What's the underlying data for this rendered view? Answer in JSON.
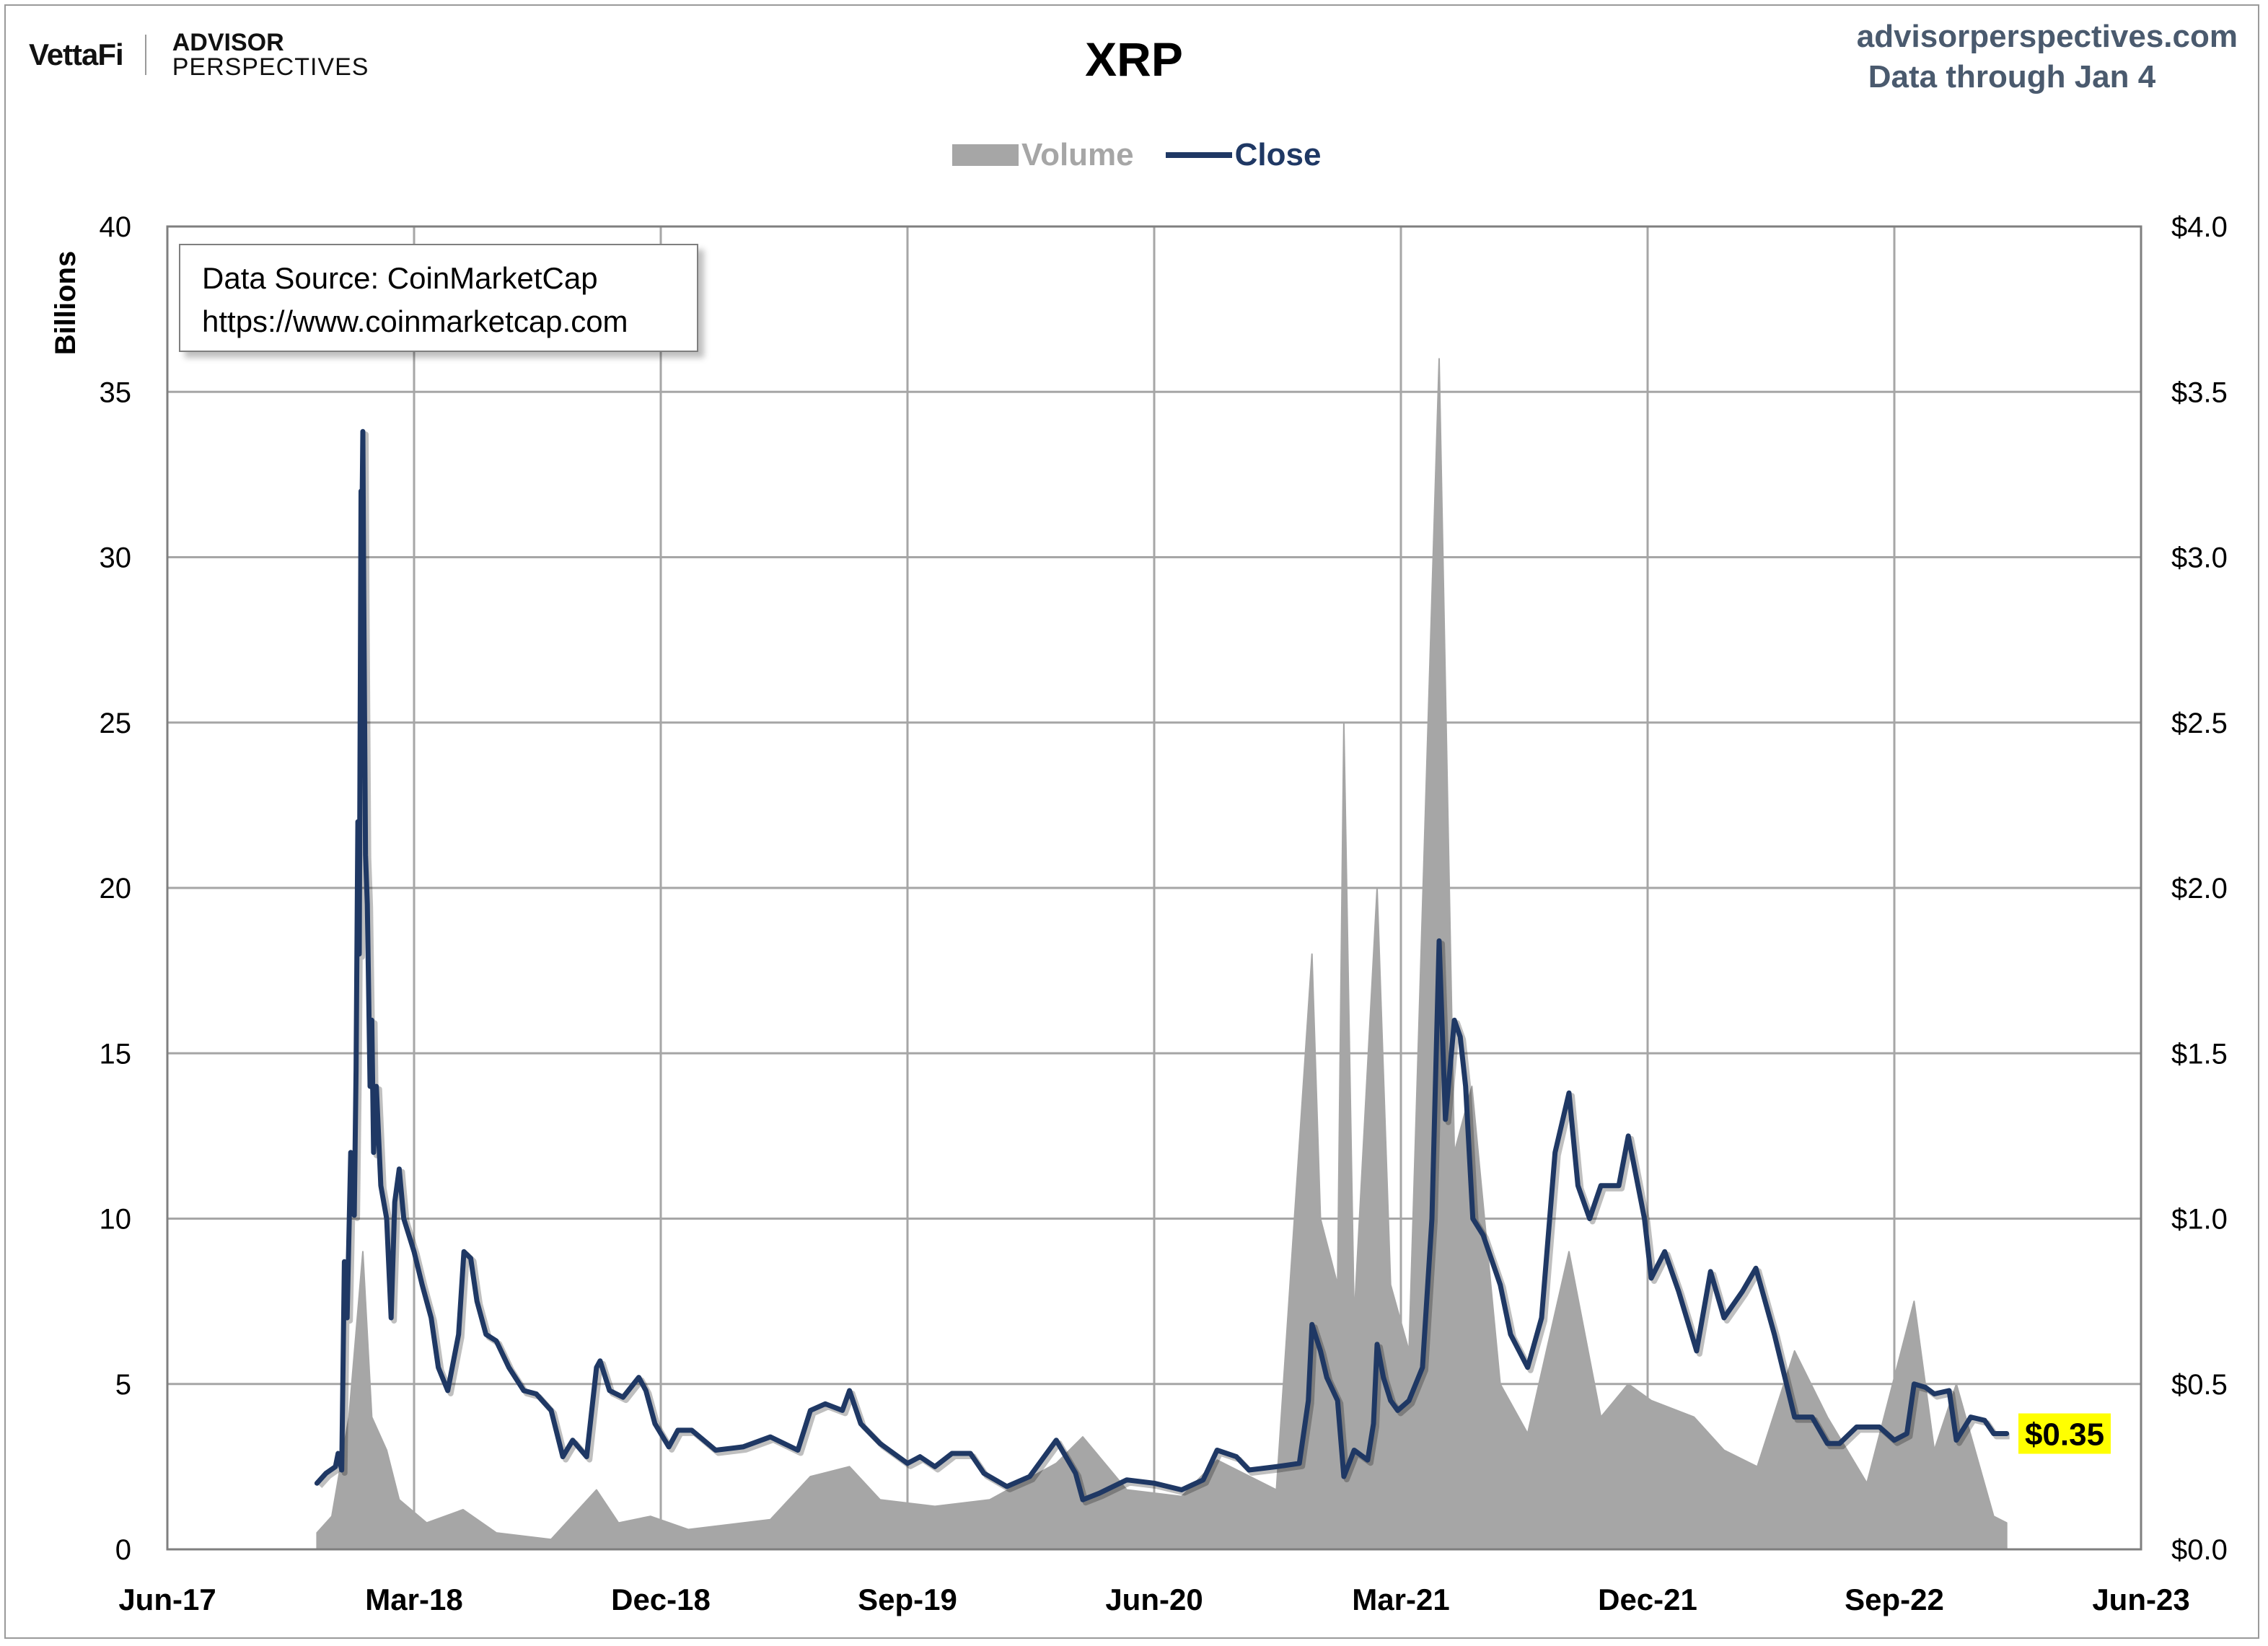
{
  "brand": {
    "logo_text": "VettaFi",
    "partner_line1": "ADVISOR",
    "partner_line2": "PERSPECTIVES"
  },
  "header": {
    "site": "advisorperspectives.com",
    "data_through": "Data through Jan 4"
  },
  "source_box": {
    "line1": "Data Source: CoinMarketCap",
    "line2": "https://www.coinmarketcap.com"
  },
  "colors": {
    "volume": "#a6a6a6",
    "close": "#1f3864",
    "grid": "#a6a6a6",
    "badge": "#ffff00"
  },
  "chart_data": {
    "type": "area+line",
    "title": "XRP",
    "y_left_label": "Billions",
    "y_left_range": [
      0,
      40
    ],
    "y_left_ticks": [
      "0",
      "5",
      "10",
      "15",
      "20",
      "25",
      "30",
      "35",
      "40"
    ],
    "y_right_range": [
      0,
      4
    ],
    "y_right_ticks": [
      "$0.0",
      "$0.5",
      "$1.0",
      "$1.5",
      "$2.0",
      "$2.5",
      "$3.0",
      "$3.5",
      "$4.0"
    ],
    "x_range": [
      "2017-06",
      "2023-06"
    ],
    "x_ticks": [
      "Jun-17",
      "Mar-18",
      "Dec-18",
      "Sep-19",
      "Jun-20",
      "Mar-21",
      "Dec-21",
      "Sep-22",
      "Jun-23"
    ],
    "grid": true,
    "legend": {
      "placement": "top-center",
      "entries": [
        "Volume",
        "Close"
      ]
    },
    "last_value_label": "$0.35",
    "series": [
      {
        "name": "Close",
        "axis": "right",
        "points": [
          [
            "2017-11-15",
            0.2
          ],
          [
            "2017-11-25",
            0.23
          ],
          [
            "2017-12-05",
            0.25
          ],
          [
            "2017-12-08",
            0.29
          ],
          [
            "2017-12-12",
            0.24
          ],
          [
            "2017-12-15",
            0.87
          ],
          [
            "2017-12-18",
            0.7
          ],
          [
            "2017-12-22",
            1.2
          ],
          [
            "2017-12-26",
            1.01
          ],
          [
            "2017-12-28",
            1.45
          ],
          [
            "2017-12-30",
            2.2
          ],
          [
            "2018-01-01",
            1.8
          ],
          [
            "2018-01-03",
            3.2
          ],
          [
            "2018-01-04",
            3.1
          ],
          [
            "2018-01-05",
            3.38
          ],
          [
            "2018-01-06",
            2.9
          ],
          [
            "2018-01-08",
            2.1
          ],
          [
            "2018-01-10",
            1.95
          ],
          [
            "2018-01-13",
            1.4
          ],
          [
            "2018-01-15",
            1.6
          ],
          [
            "2018-01-17",
            1.2
          ],
          [
            "2018-01-20",
            1.4
          ],
          [
            "2018-01-25",
            1.1
          ],
          [
            "2018-02-01",
            1.0
          ],
          [
            "2018-02-06",
            0.7
          ],
          [
            "2018-02-10",
            1.05
          ],
          [
            "2018-02-15",
            1.15
          ],
          [
            "2018-02-20",
            1.0
          ],
          [
            "2018-03-01",
            0.9
          ],
          [
            "2018-03-10",
            0.8
          ],
          [
            "2018-03-20",
            0.7
          ],
          [
            "2018-03-28",
            0.55
          ],
          [
            "2018-04-08",
            0.48
          ],
          [
            "2018-04-20",
            0.65
          ],
          [
            "2018-04-26",
            0.9
          ],
          [
            "2018-05-03",
            0.88
          ],
          [
            "2018-05-10",
            0.75
          ],
          [
            "2018-05-20",
            0.65
          ],
          [
            "2018-06-01",
            0.63
          ],
          [
            "2018-06-15",
            0.55
          ],
          [
            "2018-07-01",
            0.48
          ],
          [
            "2018-07-15",
            0.47
          ],
          [
            "2018-08-01",
            0.42
          ],
          [
            "2018-08-14",
            0.28
          ],
          [
            "2018-08-25",
            0.33
          ],
          [
            "2018-09-10",
            0.28
          ],
          [
            "2018-09-21",
            0.55
          ],
          [
            "2018-09-25",
            0.57
          ],
          [
            "2018-10-05",
            0.48
          ],
          [
            "2018-10-20",
            0.46
          ],
          [
            "2018-11-07",
            0.52
          ],
          [
            "2018-11-15",
            0.48
          ],
          [
            "2018-11-25",
            0.38
          ],
          [
            "2018-12-10",
            0.31
          ],
          [
            "2018-12-20",
            0.36
          ],
          [
            "2019-01-05",
            0.36
          ],
          [
            "2019-02-01",
            0.3
          ],
          [
            "2019-03-01",
            0.31
          ],
          [
            "2019-04-01",
            0.34
          ],
          [
            "2019-05-01",
            0.3
          ],
          [
            "2019-05-15",
            0.42
          ],
          [
            "2019-06-01",
            0.44
          ],
          [
            "2019-06-20",
            0.42
          ],
          [
            "2019-06-28",
            0.48
          ],
          [
            "2019-07-10",
            0.38
          ],
          [
            "2019-08-01",
            0.32
          ],
          [
            "2019-09-01",
            0.26
          ],
          [
            "2019-09-15",
            0.28
          ],
          [
            "2019-10-01",
            0.25
          ],
          [
            "2019-10-20",
            0.29
          ],
          [
            "2019-11-10",
            0.29
          ],
          [
            "2019-11-25",
            0.23
          ],
          [
            "2019-12-20",
            0.19
          ],
          [
            "2020-01-15",
            0.22
          ],
          [
            "2020-02-14",
            0.33
          ],
          [
            "2020-03-05",
            0.23
          ],
          [
            "2020-03-13",
            0.15
          ],
          [
            "2020-04-01",
            0.17
          ],
          [
            "2020-05-01",
            0.21
          ],
          [
            "2020-06-01",
            0.2
          ],
          [
            "2020-07-01",
            0.18
          ],
          [
            "2020-07-25",
            0.21
          ],
          [
            "2020-08-10",
            0.3
          ],
          [
            "2020-09-01",
            0.28
          ],
          [
            "2020-09-15",
            0.24
          ],
          [
            "2020-10-15",
            0.25
          ],
          [
            "2020-11-10",
            0.26
          ],
          [
            "2020-11-20",
            0.45
          ],
          [
            "2020-11-24",
            0.68
          ],
          [
            "2020-12-03",
            0.6
          ],
          [
            "2020-12-10",
            0.52
          ],
          [
            "2020-12-22",
            0.45
          ],
          [
            "2020-12-29",
            0.22
          ],
          [
            "2021-01-10",
            0.3
          ],
          [
            "2021-01-25",
            0.27
          ],
          [
            "2021-02-01",
            0.38
          ],
          [
            "2021-02-05",
            0.62
          ],
          [
            "2021-02-12",
            0.52
          ],
          [
            "2021-02-20",
            0.45
          ],
          [
            "2021-02-28",
            0.42
          ],
          [
            "2021-03-10",
            0.45
          ],
          [
            "2021-03-25",
            0.55
          ],
          [
            "2021-04-05",
            1.0
          ],
          [
            "2021-04-13",
            1.84
          ],
          [
            "2021-04-20",
            1.3
          ],
          [
            "2021-04-30",
            1.6
          ],
          [
            "2021-05-06",
            1.55
          ],
          [
            "2021-05-12",
            1.4
          ],
          [
            "2021-05-20",
            1.0
          ],
          [
            "2021-06-01",
            0.95
          ],
          [
            "2021-06-20",
            0.8
          ],
          [
            "2021-07-01",
            0.65
          ],
          [
            "2021-07-20",
            0.55
          ],
          [
            "2021-08-05",
            0.7
          ],
          [
            "2021-08-20",
            1.2
          ],
          [
            "2021-09-05",
            1.38
          ],
          [
            "2021-09-15",
            1.1
          ],
          [
            "2021-09-28",
            1.0
          ],
          [
            "2021-10-10",
            1.1
          ],
          [
            "2021-10-30",
            1.1
          ],
          [
            "2021-11-10",
            1.25
          ],
          [
            "2021-11-28",
            1.0
          ],
          [
            "2021-12-05",
            0.82
          ],
          [
            "2021-12-20",
            0.9
          ],
          [
            "2022-01-05",
            0.78
          ],
          [
            "2022-01-25",
            0.6
          ],
          [
            "2022-02-10",
            0.84
          ],
          [
            "2022-02-25",
            0.7
          ],
          [
            "2022-03-15",
            0.78
          ],
          [
            "2022-03-30",
            0.85
          ],
          [
            "2022-04-20",
            0.65
          ],
          [
            "2022-05-12",
            0.4
          ],
          [
            "2022-06-01",
            0.4
          ],
          [
            "2022-06-18",
            0.32
          ],
          [
            "2022-07-01",
            0.32
          ],
          [
            "2022-07-20",
            0.37
          ],
          [
            "2022-08-15",
            0.37
          ],
          [
            "2022-09-01",
            0.33
          ],
          [
            "2022-09-15",
            0.35
          ],
          [
            "2022-09-23",
            0.5
          ],
          [
            "2022-10-05",
            0.49
          ],
          [
            "2022-10-15",
            0.47
          ],
          [
            "2022-11-01",
            0.48
          ],
          [
            "2022-11-09",
            0.33
          ],
          [
            "2022-11-25",
            0.4
          ],
          [
            "2022-12-10",
            0.39
          ],
          [
            "2022-12-20",
            0.35
          ],
          [
            "2023-01-04",
            0.35
          ]
        ]
      },
      {
        "name": "Volume",
        "axis": "left",
        "points": [
          [
            "2017-11-15",
            0.5
          ],
          [
            "2017-12-01",
            1.0
          ],
          [
            "2017-12-20",
            4.0
          ],
          [
            "2018-01-05",
            9.0
          ],
          [
            "2018-01-15",
            4.0
          ],
          [
            "2018-02-01",
            3.0
          ],
          [
            "2018-02-15",
            1.5
          ],
          [
            "2018-03-15",
            0.8
          ],
          [
            "2018-04-25",
            1.2
          ],
          [
            "2018-06-01",
            0.5
          ],
          [
            "2018-08-01",
            0.3
          ],
          [
            "2018-09-21",
            1.8
          ],
          [
            "2018-10-15",
            0.8
          ],
          [
            "2018-11-20",
            1.0
          ],
          [
            "2019-01-01",
            0.6
          ],
          [
            "2019-04-01",
            0.9
          ],
          [
            "2019-05-15",
            2.2
          ],
          [
            "2019-06-28",
            2.5
          ],
          [
            "2019-08-01",
            1.5
          ],
          [
            "2019-10-01",
            1.3
          ],
          [
            "2019-12-01",
            1.5
          ],
          [
            "2020-02-14",
            2.6
          ],
          [
            "2020-03-13",
            3.4
          ],
          [
            "2020-05-01",
            1.8
          ],
          [
            "2020-07-01",
            1.6
          ],
          [
            "2020-08-10",
            2.7
          ],
          [
            "2020-10-15",
            1.8
          ],
          [
            "2020-11-24",
            18.0
          ],
          [
            "2020-12-03",
            10.0
          ],
          [
            "2020-12-22",
            8.0
          ],
          [
            "2020-12-29",
            25.0
          ],
          [
            "2021-01-10",
            7.0
          ],
          [
            "2021-02-05",
            20.0
          ],
          [
            "2021-02-20",
            8.0
          ],
          [
            "2021-03-10",
            6.0
          ],
          [
            "2021-04-13",
            36.0
          ],
          [
            "2021-04-30",
            12.0
          ],
          [
            "2021-05-19",
            14.0
          ],
          [
            "2021-06-20",
            5.0
          ],
          [
            "2021-07-20",
            3.5
          ],
          [
            "2021-09-05",
            9.0
          ],
          [
            "2021-10-10",
            4.0
          ],
          [
            "2021-11-10",
            5.0
          ],
          [
            "2021-12-05",
            4.5
          ],
          [
            "2022-01-22",
            4.0
          ],
          [
            "2022-02-25",
            3.0
          ],
          [
            "2022-04-01",
            2.5
          ],
          [
            "2022-05-12",
            6.0
          ],
          [
            "2022-06-18",
            4.0
          ],
          [
            "2022-08-01",
            2.0
          ],
          [
            "2022-09-23",
            7.5
          ],
          [
            "2022-10-15",
            3.0
          ],
          [
            "2022-11-09",
            5.0
          ],
          [
            "2022-12-20",
            1.0
          ],
          [
            "2023-01-04",
            0.8
          ]
        ]
      }
    ]
  }
}
